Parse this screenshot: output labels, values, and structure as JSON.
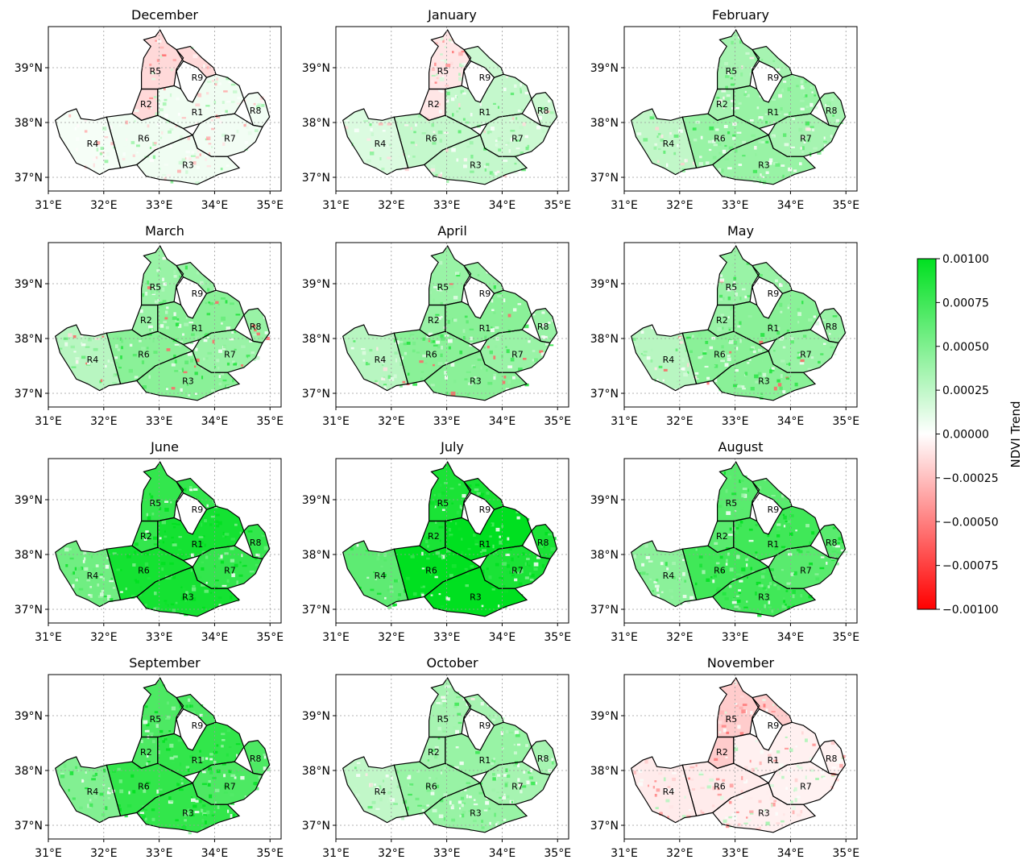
{
  "figure": {
    "months": [
      "December",
      "January",
      "February",
      "March",
      "April",
      "May",
      "June",
      "July",
      "August",
      "September",
      "October",
      "November"
    ],
    "x_ticks": [
      "31°E",
      "32°E",
      "33°E",
      "34°E",
      "35°E"
    ],
    "y_ticks": [
      "39°N",
      "38°N",
      "37°N"
    ],
    "lon_range": [
      31.0,
      35.2
    ],
    "lat_range": [
      36.75,
      39.75
    ],
    "regions": [
      "R1",
      "R2",
      "R3",
      "R4",
      "R5",
      "R6",
      "R7",
      "R8",
      "R9"
    ],
    "gridlines": true
  },
  "colorbar": {
    "label": "NDVI Trend",
    "ticks": [
      "0.00100",
      "0.00075",
      "0.00050",
      "0.00025",
      "0.00000",
      "−0.00025",
      "−0.00050",
      "−0.00075",
      "−0.00100"
    ],
    "range": [
      -0.001,
      0.001
    ],
    "colors": {
      "positive": "#00e020",
      "zero": "#ffffff",
      "negative": "#ff0000"
    }
  },
  "trend_level": {
    "December": 0.05,
    "January": 0.2,
    "February": 0.35,
    "March": 0.4,
    "April": 0.4,
    "May": 0.4,
    "June": 0.8,
    "July": 0.9,
    "August": 0.65,
    "September": 0.7,
    "October": 0.35,
    "November": -0.05
  }
}
